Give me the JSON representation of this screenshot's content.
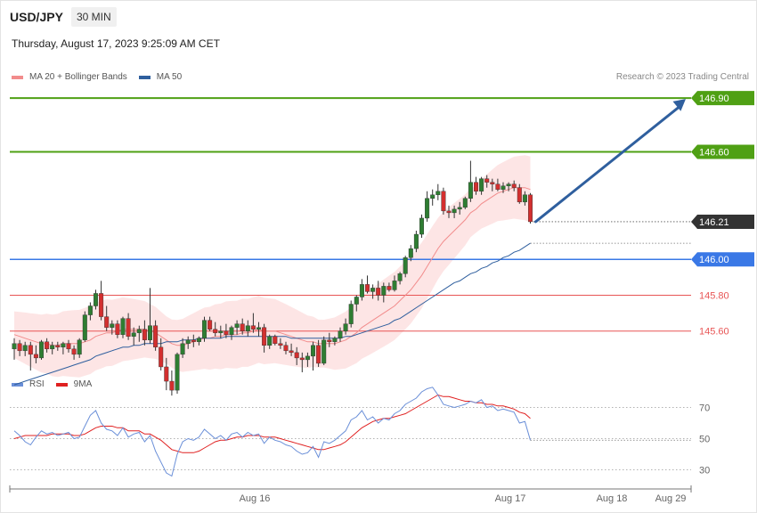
{
  "header": {
    "symbol": "USD/JPY",
    "interval": "30 MIN",
    "timestamp": "Thursday, August 17, 2023 9:25:09 AM CET"
  },
  "legend_main": [
    {
      "label": "MA 20 + Bollinger Bands",
      "color": "#f28c8c"
    },
    {
      "label": "MA 50",
      "color": "#2f5f9e"
    }
  ],
  "legend_rsi": [
    {
      "label": "RSI",
      "color": "#6a8fd8"
    },
    {
      "label": "9MA",
      "color": "#e02020"
    }
  ],
  "credit": "Research © 2023 Trading Central",
  "colors": {
    "target": "#4fa014",
    "pivot": "#3a78e6",
    "support": "#e85555",
    "last_price": "#333333",
    "bull_candle": "#2e7d32",
    "bear_candle": "#d32f2f",
    "bollinger_fill": "#fde0e0",
    "arrow": "#2f5f9e"
  },
  "chart_data": [
    {
      "type": "candlestick",
      "panel": "price",
      "xlabel": "",
      "ylabel": "",
      "ylim": [
        145.36,
        146.98
      ],
      "x_ticks": [
        "Aug 16",
        "Aug 17",
        "Aug 18",
        "Aug 29"
      ],
      "last_price": "146.21",
      "levels": [
        {
          "value": 146.9,
          "label": "146.90",
          "kind": "target"
        },
        {
          "value": 146.6,
          "label": "146.60",
          "kind": "target"
        },
        {
          "value": 146.0,
          "label": "146.00",
          "kind": "pivot"
        },
        {
          "value": 145.8,
          "label": "145.80",
          "kind": "support"
        },
        {
          "value": 145.6,
          "label": "145.60",
          "kind": "support"
        }
      ],
      "projection": {
        "from": 146.21,
        "to": 146.9,
        "direction": "up"
      },
      "candles": [
        [
          145.5,
          145.56,
          145.44,
          145.53
        ],
        [
          145.53,
          145.55,
          145.46,
          145.49
        ],
        [
          145.49,
          145.54,
          145.46,
          145.52
        ],
        [
          145.52,
          145.54,
          145.38,
          145.47
        ],
        [
          145.47,
          145.52,
          145.42,
          145.45
        ],
        [
          145.45,
          145.55,
          145.44,
          145.54
        ],
        [
          145.54,
          145.56,
          145.48,
          145.5
        ],
        [
          145.5,
          145.54,
          145.47,
          145.52
        ],
        [
          145.52,
          145.54,
          145.49,
          145.51
        ],
        [
          145.51,
          145.54,
          145.47,
          145.53
        ],
        [
          145.53,
          145.55,
          145.48,
          145.5
        ],
        [
          145.5,
          145.52,
          145.44,
          145.47
        ],
        [
          145.47,
          145.56,
          145.45,
          145.55
        ],
        [
          145.55,
          145.71,
          145.54,
          145.69
        ],
        [
          145.69,
          145.76,
          145.66,
          145.74
        ],
        [
          145.74,
          145.83,
          145.72,
          145.81
        ],
        [
          145.81,
          145.88,
          145.66,
          145.68
        ],
        [
          145.68,
          145.74,
          145.6,
          145.62
        ],
        [
          145.62,
          145.66,
          145.58,
          145.64
        ],
        [
          145.64,
          145.66,
          145.56,
          145.58
        ],
        [
          145.58,
          145.68,
          145.56,
          145.67
        ],
        [
          145.67,
          145.7,
          145.55,
          145.57
        ],
        [
          145.57,
          145.62,
          145.52,
          145.59
        ],
        [
          145.59,
          145.63,
          145.54,
          145.61
        ],
        [
          145.61,
          145.66,
          145.52,
          145.55
        ],
        [
          145.55,
          145.84,
          145.53,
          145.63
        ],
        [
          145.63,
          145.66,
          145.49,
          145.51
        ],
        [
          145.51,
          145.56,
          145.38,
          145.4
        ],
        [
          145.4,
          145.45,
          145.27,
          145.32
        ],
        [
          145.32,
          145.38,
          145.24,
          145.27
        ],
        [
          145.27,
          145.48,
          145.25,
          145.47
        ],
        [
          145.47,
          145.56,
          145.45,
          145.53
        ],
        [
          145.53,
          145.57,
          145.5,
          145.55
        ],
        [
          145.55,
          145.58,
          145.51,
          145.54
        ],
        [
          145.54,
          145.57,
          145.52,
          145.56
        ],
        [
          145.56,
          145.68,
          145.54,
          145.66
        ],
        [
          145.66,
          145.68,
          145.6,
          145.61
        ],
        [
          145.61,
          145.65,
          145.57,
          145.59
        ],
        [
          145.59,
          145.63,
          145.56,
          145.6
        ],
        [
          145.6,
          145.64,
          145.56,
          145.58
        ],
        [
          145.58,
          145.63,
          145.55,
          145.62
        ],
        [
          145.62,
          145.66,
          145.58,
          145.64
        ],
        [
          145.64,
          145.67,
          145.58,
          145.6
        ],
        [
          145.6,
          145.66,
          145.57,
          145.63
        ],
        [
          145.63,
          145.7,
          145.59,
          145.61
        ],
        [
          145.61,
          145.65,
          145.57,
          145.62
        ],
        [
          145.62,
          145.64,
          145.48,
          145.52
        ],
        [
          145.52,
          145.58,
          145.5,
          145.57
        ],
        [
          145.57,
          145.58,
          145.52,
          145.53
        ],
        [
          145.53,
          145.56,
          145.5,
          145.52
        ],
        [
          145.52,
          145.54,
          145.47,
          145.49
        ],
        [
          145.49,
          145.53,
          145.46,
          145.48
        ],
        [
          145.48,
          145.51,
          145.41,
          145.45
        ],
        [
          145.45,
          145.48,
          145.37,
          145.44
        ],
        [
          145.44,
          145.48,
          145.4,
          145.46
        ],
        [
          145.46,
          145.54,
          145.38,
          145.52
        ],
        [
          145.52,
          145.55,
          145.4,
          145.42
        ],
        [
          145.42,
          145.57,
          145.41,
          145.55
        ],
        [
          145.55,
          145.59,
          145.51,
          145.54
        ],
        [
          145.54,
          145.57,
          145.52,
          145.56
        ],
        [
          145.56,
          145.62,
          145.54,
          145.6
        ],
        [
          145.6,
          145.67,
          145.58,
          145.64
        ],
        [
          145.64,
          145.77,
          145.62,
          145.75
        ],
        [
          145.75,
          145.8,
          145.71,
          145.79
        ],
        [
          145.79,
          145.89,
          145.77,
          145.86
        ],
        [
          145.86,
          145.91,
          145.81,
          145.82
        ],
        [
          145.82,
          145.86,
          145.78,
          145.84
        ],
        [
          145.84,
          145.88,
          145.77,
          145.8
        ],
        [
          145.8,
          145.87,
          145.76,
          145.85
        ],
        [
          145.85,
          145.87,
          145.82,
          145.83
        ],
        [
          145.83,
          145.91,
          145.82,
          145.88
        ],
        [
          145.88,
          145.93,
          145.86,
          145.92
        ],
        [
          145.92,
          146.02,
          145.9,
          146.01
        ],
        [
          146.01,
          146.08,
          145.99,
          146.06
        ],
        [
          146.06,
          146.16,
          146.04,
          146.14
        ],
        [
          146.14,
          146.25,
          146.12,
          146.23
        ],
        [
          146.23,
          146.38,
          146.21,
          146.34
        ],
        [
          146.34,
          146.39,
          146.3,
          146.36
        ],
        [
          146.36,
          146.42,
          146.33,
          146.38
        ],
        [
          146.38,
          146.4,
          146.25,
          146.27
        ],
        [
          146.27,
          146.3,
          146.23,
          146.26
        ],
        [
          146.26,
          146.3,
          146.23,
          146.28
        ],
        [
          146.28,
          146.32,
          146.25,
          146.29
        ],
        [
          146.29,
          146.35,
          146.28,
          146.34
        ],
        [
          146.34,
          146.55,
          146.32,
          146.43
        ],
        [
          146.43,
          146.46,
          146.36,
          146.38
        ],
        [
          146.38,
          146.46,
          146.36,
          146.45
        ],
        [
          146.45,
          146.47,
          146.4,
          146.43
        ],
        [
          146.43,
          146.45,
          146.38,
          146.42
        ],
        [
          146.42,
          146.45,
          146.38,
          146.39
        ],
        [
          146.39,
          146.43,
          146.37,
          146.41
        ],
        [
          146.41,
          146.43,
          146.38,
          146.42
        ],
        [
          146.42,
          146.44,
          146.38,
          146.4
        ],
        [
          146.4,
          146.42,
          146.31,
          146.32
        ],
        [
          146.32,
          146.38,
          146.3,
          146.36
        ],
        [
          146.36,
          146.37,
          146.2,
          146.21
        ]
      ],
      "series": [
        {
          "name": "MA 20",
          "values": [
            145.58,
            145.57,
            145.56,
            145.55,
            145.54,
            145.53,
            145.53,
            145.52,
            145.52,
            145.53,
            145.53,
            145.53,
            145.53,
            145.54,
            145.55,
            145.57,
            145.58,
            145.59,
            145.59,
            145.6,
            145.61,
            145.61,
            145.61,
            145.61,
            145.61,
            145.6,
            145.59,
            145.57,
            145.55,
            145.53,
            145.52,
            145.52,
            145.53,
            145.54,
            145.55,
            145.56,
            145.56,
            145.57,
            145.57,
            145.58,
            145.58,
            145.58,
            145.59,
            145.59,
            145.6,
            145.61,
            145.6,
            145.6,
            145.6,
            145.59,
            145.58,
            145.57,
            145.56,
            145.55,
            145.54,
            145.54,
            145.53,
            145.53,
            145.53,
            145.53,
            145.54,
            145.55,
            145.57,
            145.59,
            145.62,
            145.64,
            145.66,
            145.68,
            145.7,
            145.72,
            145.74,
            145.77,
            145.8,
            145.83,
            145.87,
            145.91,
            145.96,
            146.01,
            146.06,
            146.1,
            146.13,
            146.16,
            146.19,
            146.22,
            146.26,
            146.28,
            146.31,
            146.33,
            146.35,
            146.37,
            146.38,
            146.39,
            146.4,
            146.4,
            146.4,
            146.39
          ]
        },
        {
          "name": "MA 50",
          "values": [
            145.3,
            145.31,
            145.32,
            145.33,
            145.34,
            145.35,
            145.36,
            145.37,
            145.38,
            145.39,
            145.4,
            145.41,
            145.42,
            145.43,
            145.44,
            145.46,
            145.47,
            145.48,
            145.49,
            145.5,
            145.51,
            145.51,
            145.52,
            145.52,
            145.53,
            145.53,
            145.53,
            145.53,
            145.54,
            145.54,
            145.54,
            145.55,
            145.55,
            145.55,
            145.56,
            145.56,
            145.56,
            145.56,
            145.56,
            145.57,
            145.57,
            145.57,
            145.57,
            145.57,
            145.57,
            145.57,
            145.57,
            145.57,
            145.57,
            145.57,
            145.57,
            145.56,
            145.56,
            145.56,
            145.56,
            145.56,
            145.56,
            145.56,
            145.56,
            145.56,
            145.56,
            145.57,
            145.57,
            145.58,
            145.59,
            145.6,
            145.61,
            145.62,
            145.63,
            145.64,
            145.66,
            145.67,
            145.69,
            145.71,
            145.73,
            145.75,
            145.77,
            145.79,
            145.81,
            145.83,
            145.85,
            145.87,
            145.88,
            145.9,
            145.92,
            145.93,
            145.95,
            145.96,
            145.98,
            145.99,
            146.01,
            146.02,
            146.04,
            146.05,
            146.07,
            146.09
          ]
        }
      ]
    },
    {
      "type": "line",
      "panel": "rsi",
      "ylim": [
        20,
        80
      ],
      "y_ticks": [
        70,
        50,
        30
      ],
      "series": [
        {
          "name": "RSI",
          "values": [
            55,
            52,
            48,
            46,
            51,
            55,
            53,
            54,
            52,
            53,
            54,
            50,
            51,
            58,
            65,
            68,
            60,
            56,
            55,
            52,
            57,
            51,
            53,
            54,
            48,
            52,
            42,
            35,
            28,
            26,
            40,
            48,
            50,
            49,
            51,
            56,
            53,
            50,
            52,
            49,
            53,
            54,
            51,
            54,
            52,
            53,
            47,
            51,
            49,
            48,
            46,
            45,
            42,
            40,
            41,
            45,
            38,
            48,
            47,
            49,
            52,
            55,
            62,
            64,
            68,
            62,
            64,
            60,
            63,
            62,
            66,
            68,
            72,
            74,
            76,
            80,
            82,
            83,
            78,
            72,
            71,
            70,
            71,
            72,
            74,
            73,
            75,
            70,
            71,
            68,
            69,
            68,
            67,
            60,
            61,
            49
          ]
        },
        {
          "name": "9MA",
          "values": [
            50,
            51,
            52,
            52,
            52,
            52,
            52,
            53,
            53,
            53,
            53,
            52,
            52,
            53,
            55,
            57,
            58,
            58,
            58,
            57,
            57,
            55,
            55,
            55,
            53,
            53,
            51,
            49,
            46,
            43,
            42,
            41,
            41,
            41,
            42,
            44,
            46,
            48,
            49,
            49,
            50,
            51,
            51,
            52,
            52,
            52,
            51,
            51,
            51,
            50,
            49,
            48,
            47,
            46,
            45,
            44,
            43,
            43,
            44,
            45,
            46,
            48,
            51,
            54,
            57,
            59,
            61,
            62,
            63,
            63,
            64,
            65,
            66,
            68,
            70,
            72,
            74,
            76,
            78,
            77,
            77,
            76,
            75,
            74,
            74,
            73,
            73,
            72,
            72,
            71,
            71,
            70,
            69,
            67,
            66,
            63
          ]
        }
      ]
    }
  ]
}
